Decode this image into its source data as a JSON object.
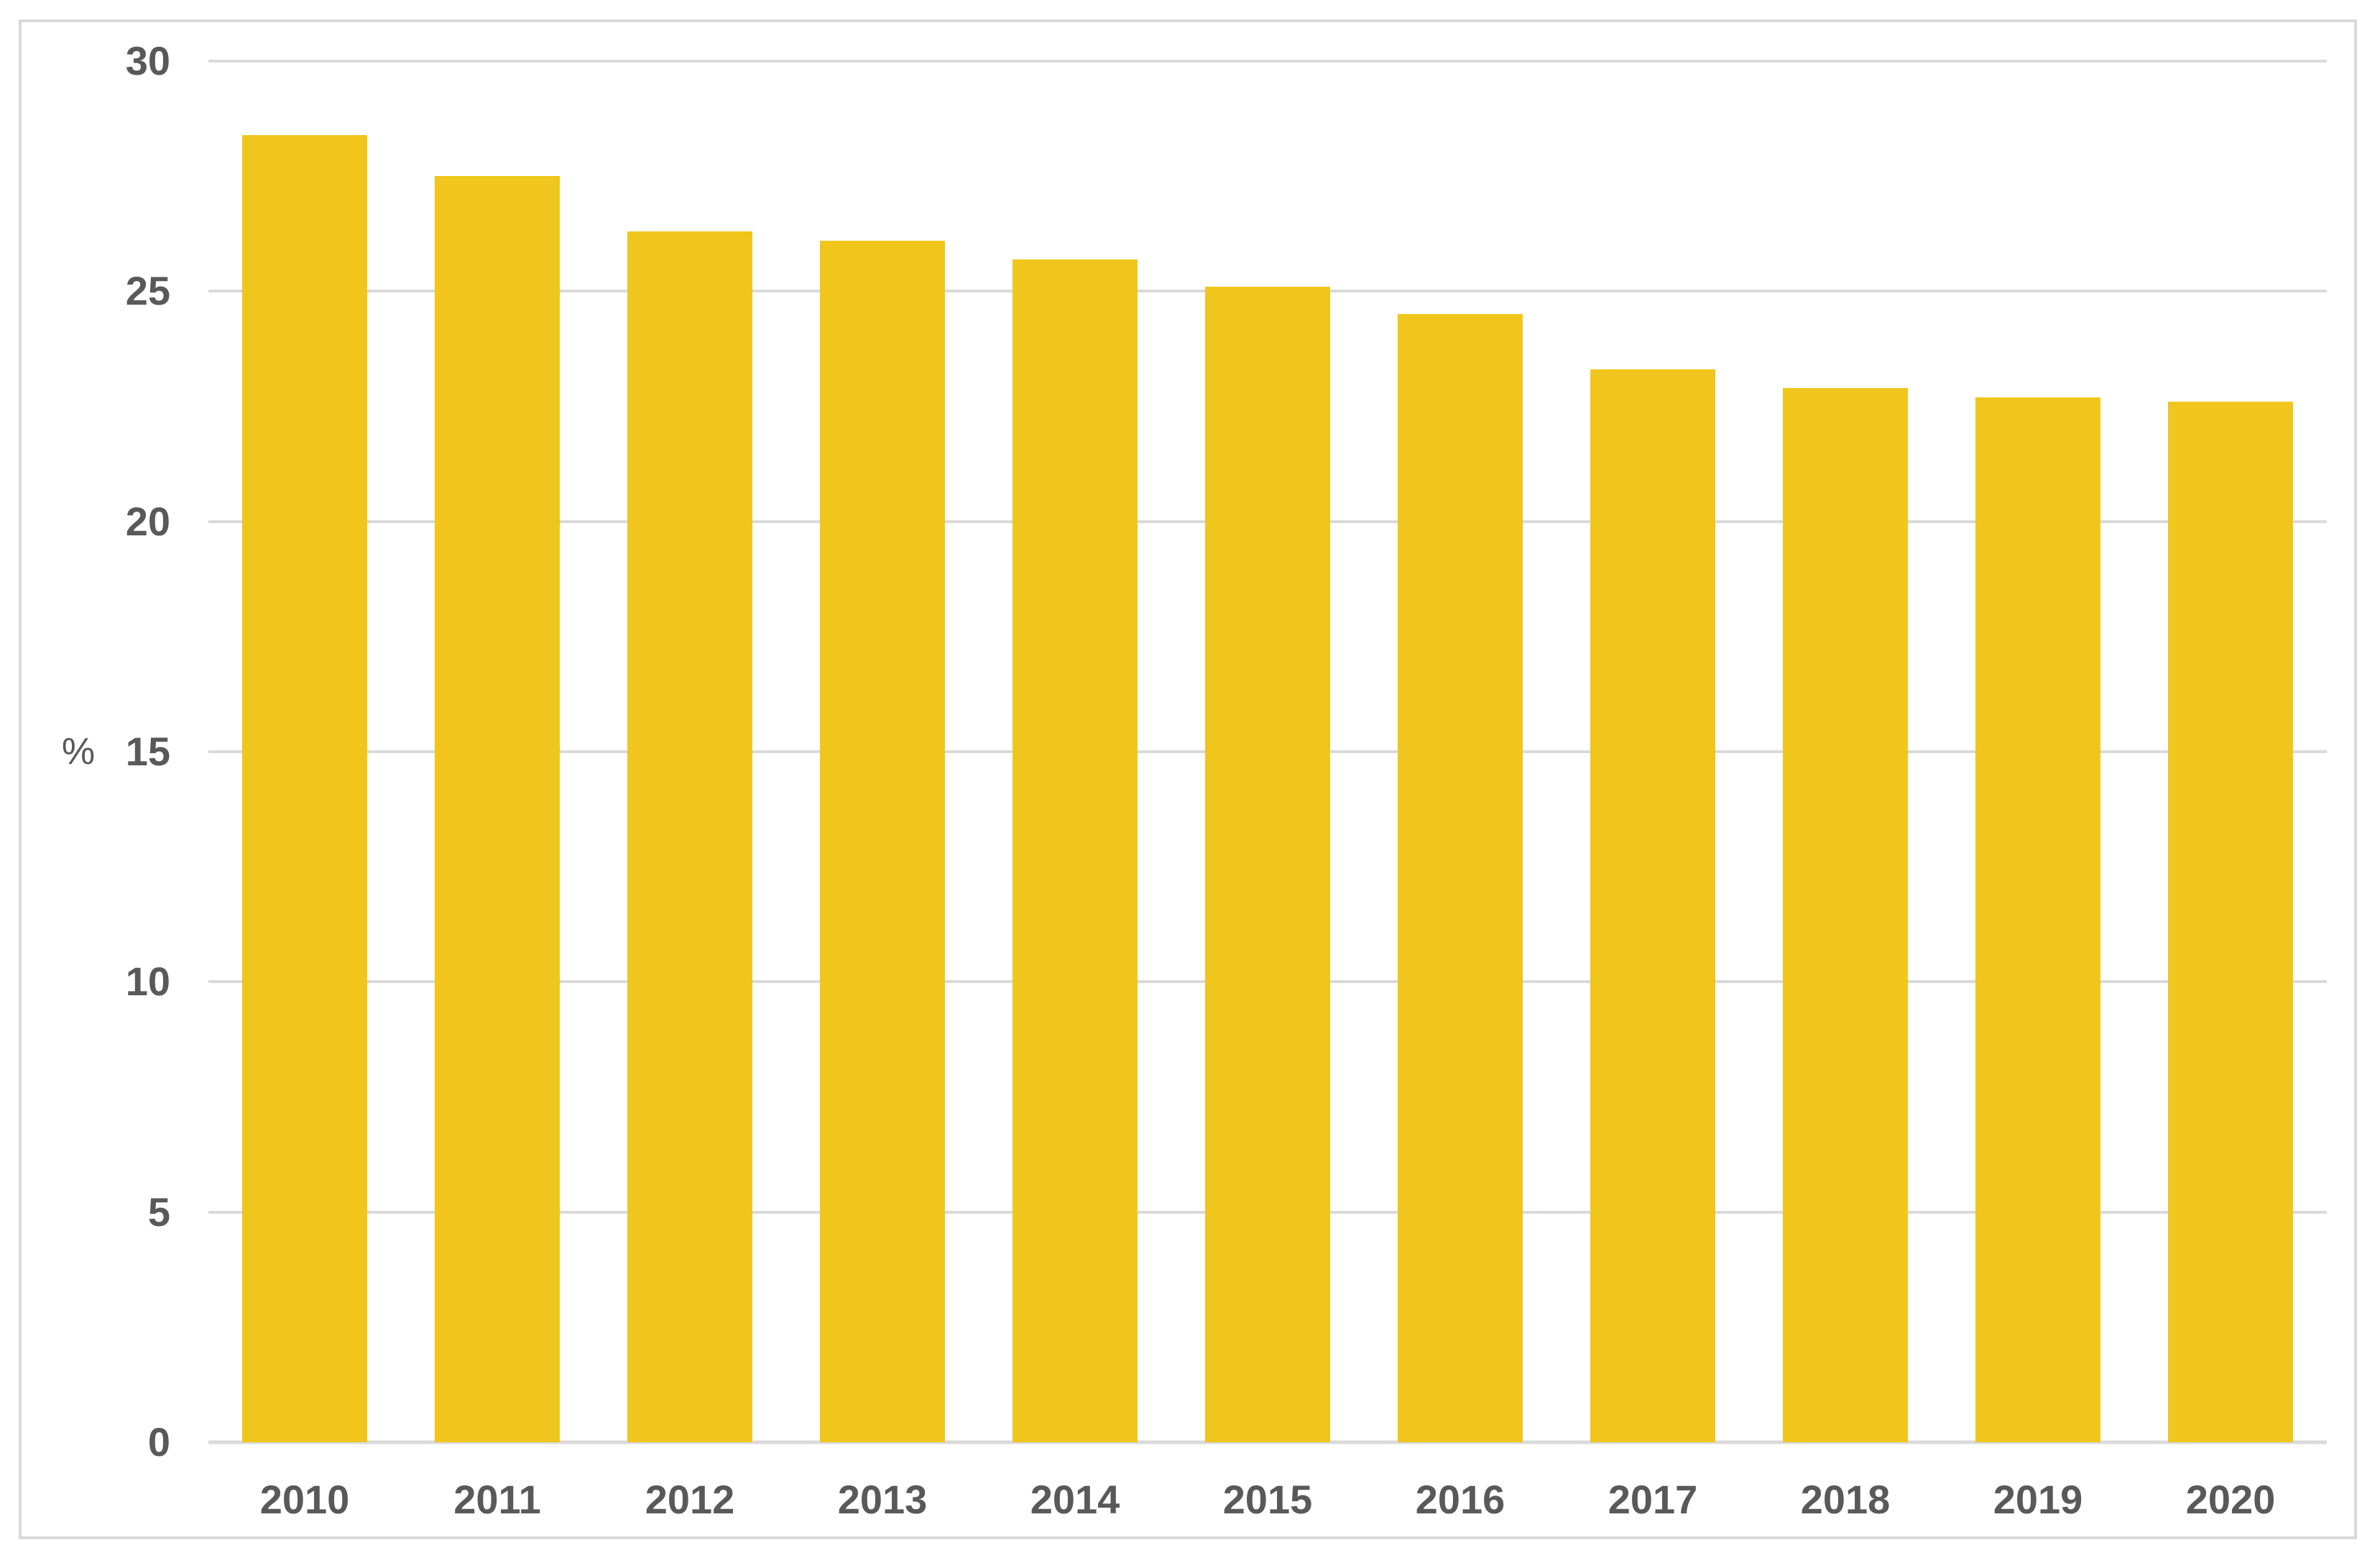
{
  "chart_data": {
    "type": "bar",
    "title": "",
    "xlabel": "",
    "ylabel": "%",
    "categories": [
      "2010",
      "2011",
      "2012",
      "2013",
      "2014",
      "2015",
      "2016",
      "2017",
      "2018",
      "2019",
      "2020"
    ],
    "values": [
      28.4,
      27.5,
      26.3,
      26.1,
      25.7,
      25.1,
      24.5,
      23.3,
      22.9,
      22.7,
      22.6
    ],
    "ylim": [
      0,
      30
    ],
    "yticks": [
      0,
      5,
      10,
      15,
      20,
      25,
      30
    ],
    "grid": true,
    "legend_position": "none"
  },
  "colors": {
    "background": "#FFFFFF",
    "frame_border": "#D9D9D9",
    "gridline": "#DADADA",
    "axis_text": "#595959",
    "bar_fill": "#F0C61D"
  }
}
